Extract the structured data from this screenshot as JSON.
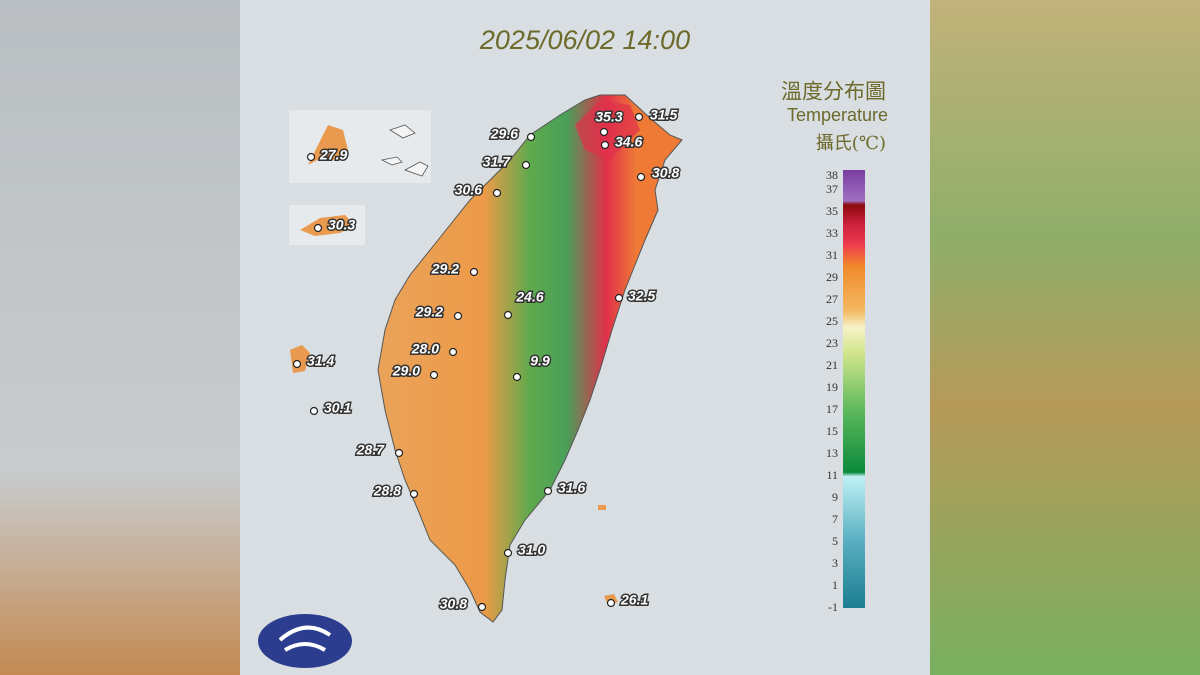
{
  "title": "2025/06/02 14:00",
  "legend": {
    "title": "溫度分布圖",
    "subtitle": "Temperature",
    "unit": "攝氏(℃)",
    "ticks": [
      "38",
      "37",
      "35",
      "33",
      "31",
      "29",
      "27",
      "25",
      "23",
      "21",
      "19",
      "17",
      "15",
      "13",
      "11",
      "9",
      "7",
      "5",
      "3",
      "1",
      "-1"
    ]
  },
  "stations": [
    {
      "label": "35.3"
    },
    {
      "label": "31.5"
    },
    {
      "label": "34.6"
    },
    {
      "label": "29.6"
    },
    {
      "label": "31.7"
    },
    {
      "label": "30.8"
    },
    {
      "label": "30.6"
    },
    {
      "label": "27.9"
    },
    {
      "label": "30.3"
    },
    {
      "label": "29.2"
    },
    {
      "label": "29.2"
    },
    {
      "label": "24.6"
    },
    {
      "label": "32.5"
    },
    {
      "label": "28.0"
    },
    {
      "label": "29.0"
    },
    {
      "label": "9.9"
    },
    {
      "label": "31.4"
    },
    {
      "label": "30.1"
    },
    {
      "label": "28.7"
    },
    {
      "label": "28.8"
    },
    {
      "label": "31.6"
    },
    {
      "label": "31.0"
    },
    {
      "label": "30.8"
    },
    {
      "label": "26.1"
    }
  ]
}
